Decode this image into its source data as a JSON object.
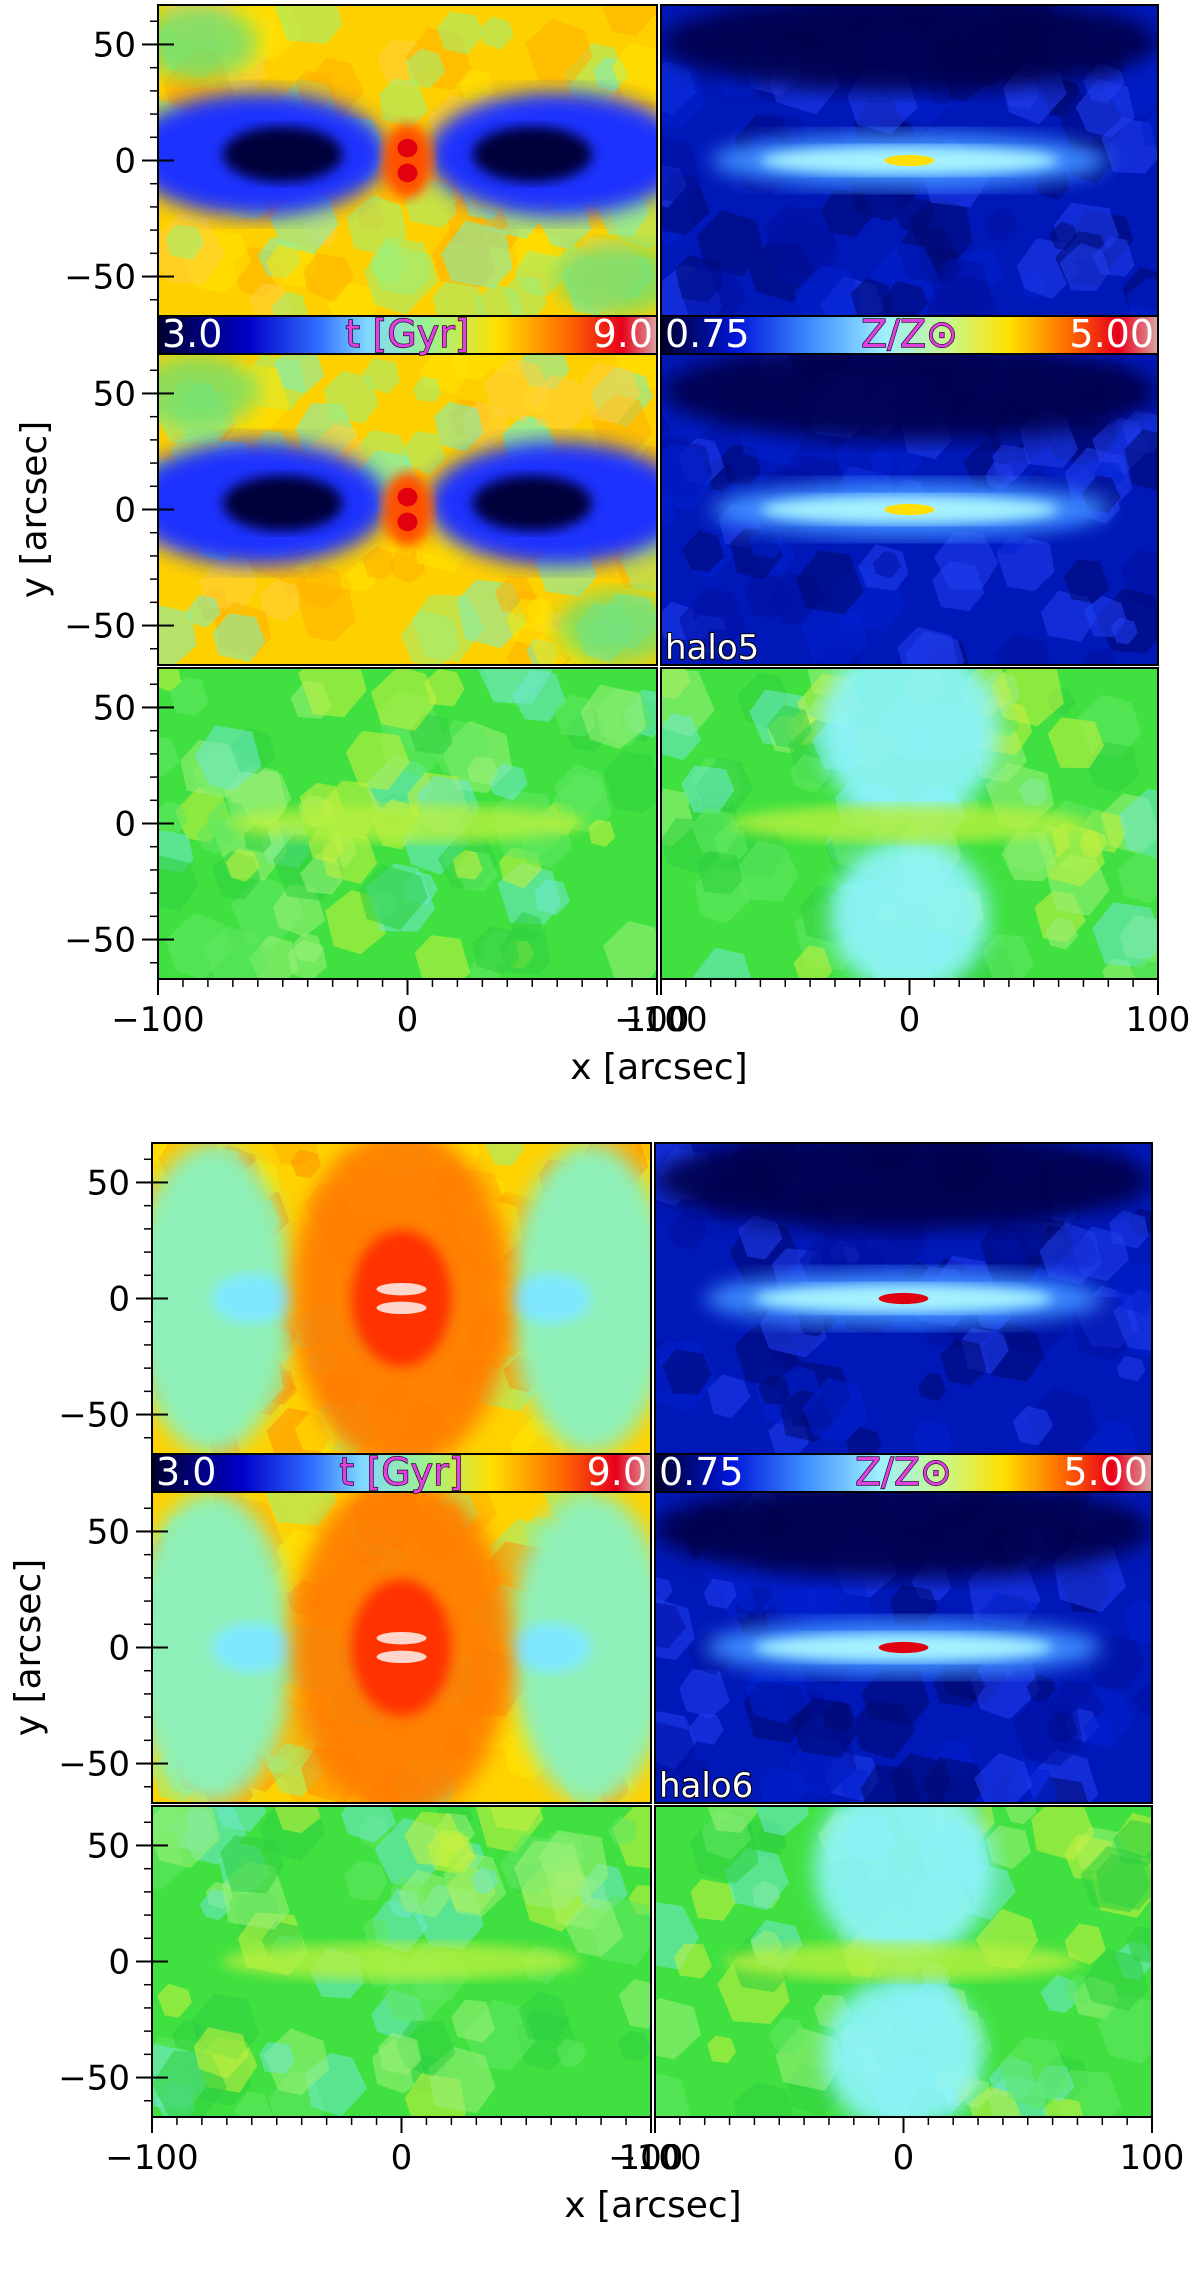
{
  "figure": {
    "blocks": [
      {
        "halo_label": "halo5",
        "age_colorbar": {
          "min_label": "3.0",
          "max_label": "9.0",
          "title": "t [Gyr]"
        },
        "metal_colorbar": {
          "min_label": "0.75",
          "max_label": "5.00",
          "title": "Z/Z⊙"
        },
        "ylabel": "y [arcsec]",
        "xlabel": "x [arcsec]",
        "y_ticks": [
          "50",
          "0",
          "−50"
        ],
        "x_ticks_left": [
          "−100",
          "0",
          "100"
        ],
        "x_ticks_right": [
          "−100",
          "0",
          "100"
        ]
      },
      {
        "halo_label": "halo6",
        "age_colorbar": {
          "min_label": "3.0",
          "max_label": "9.0",
          "title": "t [Gyr]"
        },
        "metal_colorbar": {
          "min_label": "0.75",
          "max_label": "5.00",
          "title": "Z/Z⊙"
        },
        "ylabel": "y [arcsec]",
        "xlabel": "x [arcsec]",
        "y_ticks": [
          "50",
          "0",
          "−50"
        ],
        "x_ticks_left": [
          "−100",
          "0",
          "100"
        ],
        "x_ticks_right": [
          "−100",
          "0",
          "100"
        ]
      }
    ]
  },
  "chart_data": [
    {
      "type": "heatmap",
      "title": "",
      "halo": "halo5",
      "xlabel": "x [arcsec]",
      "ylabel": "y [arcsec]",
      "xlim": [
        -100,
        100
      ],
      "ylim": [
        -67,
        67
      ],
      "x_ticks": [
        -100,
        0,
        100
      ],
      "y_ticks": [
        -50,
        0,
        50
      ],
      "panels": [
        {
          "row": 1,
          "col": 1,
          "quantity": "age",
          "pattern": "young dark-blue lobes at x≈±60 along the midplane, old (red, ~9 Gyr) core at centre, yellow/orange above and below"
        },
        {
          "row": 1,
          "col": 2,
          "quantity": "metallicity",
          "pattern": "thin bright metal-rich disc along y=0, dark-blue low metallicity elsewhere"
        },
        {
          "row": 2,
          "col": 1,
          "quantity": "age",
          "pattern": "similar to row 1 with red core at origin and blue lobes at x≈±60"
        },
        {
          "row": 2,
          "col": 2,
          "quantity": "metallicity",
          "pattern": "metal-rich disc along y=0 with yellow centre"
        },
        {
          "row": 3,
          "col": 1,
          "quantity": "green-cyan map",
          "pattern": "mostly green with faint disc along y=0"
        },
        {
          "row": 3,
          "col": 2,
          "quantity": "green-cyan map",
          "pattern": "green with cyan vertical band at centre, disc along y=0"
        }
      ],
      "colorbars": [
        {
          "label": "t [Gyr]",
          "range": [
            3.0,
            9.0
          ]
        },
        {
          "label": "Z/Z⊙",
          "range": [
            0.75,
            5.0
          ]
        }
      ]
    },
    {
      "type": "heatmap",
      "title": "",
      "halo": "halo6",
      "xlabel": "x [arcsec]",
      "ylabel": "y [arcsec]",
      "xlim": [
        -100,
        100
      ],
      "ylim": [
        -67,
        67
      ],
      "x_ticks": [
        -100,
        0,
        100
      ],
      "y_ticks": [
        -50,
        0,
        50
      ],
      "panels": [
        {
          "row": 1,
          "col": 1,
          "quantity": "age",
          "pattern": "old red X-shaped bulge centred at origin, cyan lobes at x≈±60, yellow outskirts"
        },
        {
          "row": 1,
          "col": 2,
          "quantity": "metallicity",
          "pattern": "thin disc along y=0 with red metal-rich centre"
        },
        {
          "row": 2,
          "col": 1,
          "quantity": "age",
          "pattern": "red core, orange X-shaped bulge, cyan lobes at x≈±60"
        },
        {
          "row": 2,
          "col": 2,
          "quantity": "metallicity",
          "pattern": "disc along y=0 with red centre"
        },
        {
          "row": 3,
          "col": 1,
          "quantity": "green-cyan map",
          "pattern": "mostly green with faint disc along y=0"
        },
        {
          "row": 3,
          "col": 2,
          "quantity": "green-cyan map",
          "pattern": "green with cyan vertical band and faint disc"
        }
      ],
      "colorbars": [
        {
          "label": "t [Gyr]",
          "range": [
            3.0,
            9.0
          ]
        },
        {
          "label": "Z/Z⊙",
          "range": [
            0.75,
            5.0
          ]
        }
      ]
    }
  ]
}
